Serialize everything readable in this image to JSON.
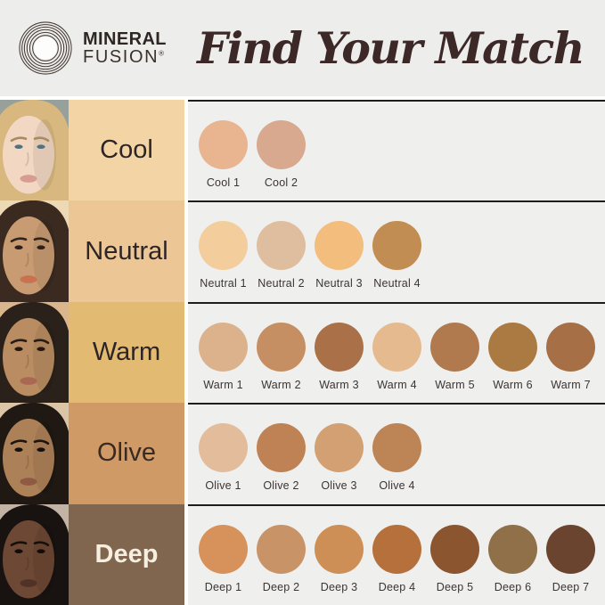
{
  "header": {
    "brand": {
      "line1": "MINERAL",
      "line2": "FUSION",
      "registered": "®"
    },
    "title": "Find Your Match"
  },
  "palette": {
    "header_bg": "#EDEDEB",
    "panel_bg": "#EFEFEE",
    "separator_line": "#1D1D1D",
    "title_color": "#3C2827",
    "brand_color": "#2E2724",
    "swatch_label_color": "#3B3533"
  },
  "rows": [
    {
      "label": "Cool",
      "label_bg": "#F3D5A5",
      "label_color": "#2E2526",
      "label_bold": false,
      "face": {
        "bg": "#97A09A",
        "skin": "#F2D8C3",
        "hair": "#D8B87E",
        "eye": "#53707F",
        "brow": "#A98B5E",
        "lips": "#D79C92"
      },
      "swatches": [
        {
          "name": "Cool 1",
          "color": "#E9B590"
        },
        {
          "name": "Cool 2",
          "color": "#D9A98F"
        }
      ]
    },
    {
      "label": "Neutral",
      "label_bg": "#ECC795",
      "label_color": "#2E2526",
      "label_bold": false,
      "face": {
        "bg": "#EDD9B6",
        "skin": "#C89B72",
        "hair": "#3A2A20",
        "eye": "#2E1F18",
        "brow": "#33241B",
        "lips": "#C8724F"
      },
      "swatches": [
        {
          "name": "Neutral 1",
          "color": "#F4CD9C"
        },
        {
          "name": "Neutral 2",
          "color": "#DFBE9F"
        },
        {
          "name": "Neutral 3",
          "color": "#F3BD7E"
        },
        {
          "name": "Neutral 4",
          "color": "#C28D52"
        }
      ]
    },
    {
      "label": "Warm",
      "label_bg": "#E3BA72",
      "label_color": "#2E2526",
      "label_bold": false,
      "face": {
        "bg": "#D9B68C",
        "skin": "#B98C61",
        "hair": "#2A211A",
        "eye": "#241811",
        "brow": "#271D15",
        "lips": "#A96853"
      },
      "swatches": [
        {
          "name": "Warm 1",
          "color": "#DCB28C"
        },
        {
          "name": "Warm 2",
          "color": "#C68F63"
        },
        {
          "name": "Warm 3",
          "color": "#AA7149"
        },
        {
          "name": "Warm 4",
          "color": "#E5BA8F"
        },
        {
          "name": "Warm 5",
          "color": "#B07A4E"
        },
        {
          "name": "Warm 6",
          "color": "#AB7A43"
        },
        {
          "name": "Warm 7",
          "color": "#A76F45"
        }
      ]
    },
    {
      "label": "Olive",
      "label_bg": "#D09A66",
      "label_color": "#3A2A22",
      "label_bold": false,
      "face": {
        "bg": "#DCC5A6",
        "skin": "#AD8158",
        "hair": "#1F1813",
        "eye": "#170F0B",
        "brow": "#1D140E",
        "lips": "#8F5A44"
      },
      "swatches": [
        {
          "name": "Olive 1",
          "color": "#E2BC9B"
        },
        {
          "name": "Olive 2",
          "color": "#BF8255"
        },
        {
          "name": "Olive 3",
          "color": "#D3A074"
        },
        {
          "name": "Olive 4",
          "color": "#BD8455"
        }
      ]
    },
    {
      "label": "Deep",
      "label_bg": "#80664F",
      "label_color": "#F6EFE0",
      "label_bold": true,
      "face": {
        "bg": "#C3B3A5",
        "skin": "#6D4834",
        "hair": "#181210",
        "eye": "#120C09",
        "brow": "#15100C",
        "lips": "#503227"
      },
      "swatches": [
        {
          "name": "Deep 1",
          "color": "#D6925A"
        },
        {
          "name": "Deep 2",
          "color": "#C89366"
        },
        {
          "name": "Deep 3",
          "color": "#CD8F56"
        },
        {
          "name": "Deep 4",
          "color": "#B5703C"
        },
        {
          "name": "Deep 5",
          "color": "#8B5530"
        },
        {
          "name": "Deep 6",
          "color": "#8F7049"
        },
        {
          "name": "Deep 7",
          "color": "#6B4430"
        }
      ]
    }
  ]
}
